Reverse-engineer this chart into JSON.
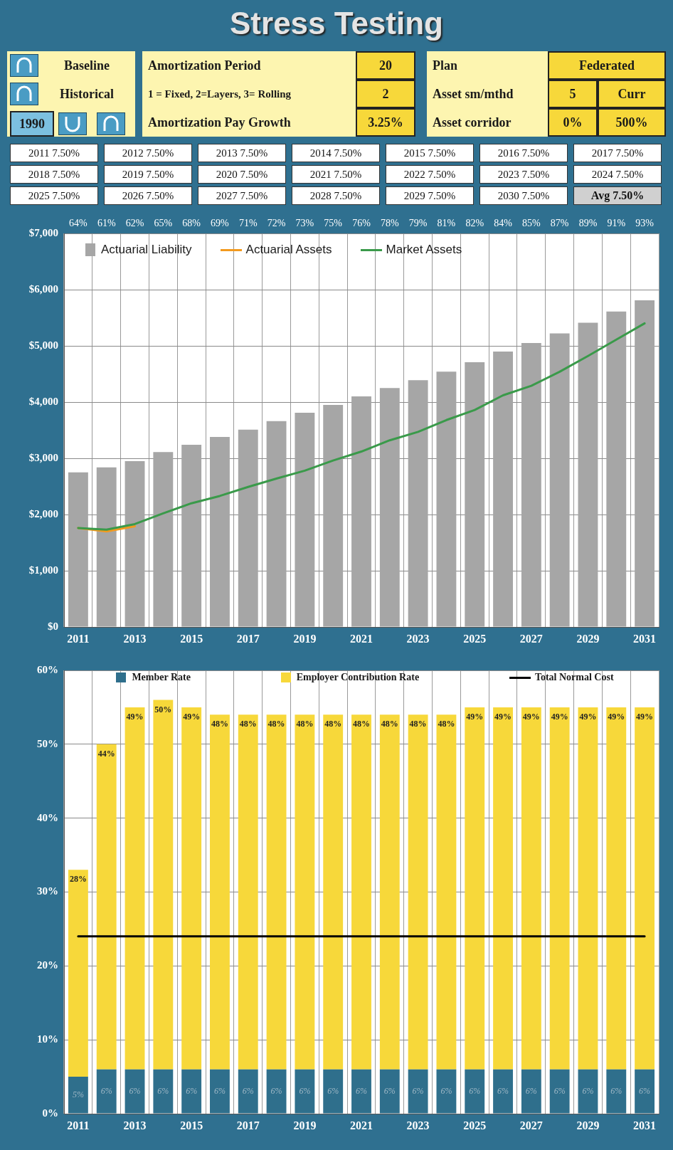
{
  "chart_data": [
    {
      "type": "other",
      "title": "Stress Testing",
      "annotations": [
        "Baseline",
        "Historical",
        "1990",
        "Amortization Period",
        "1 = Fixed, 2=Layers, 3= Rolling",
        "Amortization Pay Growth",
        "20",
        "2",
        "3.25%",
        "Plan",
        "Asset sm/mthd",
        "Asset corridor",
        "Federated",
        "5",
        "Curr",
        "0%",
        "500%"
      ]
    },
    {
      "type": "other",
      "annotations": [
        "2011 7.50%",
        "2012 7.50%",
        "2013 7.50%",
        "2014 7.50%",
        "2015 7.50%",
        "2016 7.50%",
        "2017 7.50%",
        "2018 7.50%",
        "2019 7.50%",
        "2020 7.50%",
        "2021 7.50%",
        "2022 7.50%",
        "2023 7.50%",
        "2024 7.50%",
        "2025 7.50%",
        "2026 7.50%",
        "2027 7.50%",
        "2028 7.50%",
        "2029 7.50%",
        "2030 7.50%",
        "Avg 7.50%"
      ]
    },
    {
      "type": "bar",
      "categories": [
        "2011",
        null,
        "2013",
        null,
        "2015",
        null,
        "2017",
        null,
        "2019",
        null,
        "2021",
        null,
        "2023",
        null,
        "2025",
        null,
        "2027",
        null,
        "2029",
        null,
        "2031"
      ],
      "series": [
        {
          "name": "Actuarial Liability",
          "color": "#a6a6a6",
          "values": [
            2750,
            2840,
            2950,
            3110,
            3240,
            3380,
            3510,
            3660,
            3810,
            3950,
            4100,
            4250,
            4390,
            4540,
            4710,
            4900,
            5050,
            5220,
            5410,
            5610,
            5810
          ]
        },
        {
          "name": "Actuarial Assets",
          "type": "line",
          "color": "#f39a1e",
          "values": [
            1760,
            1700,
            1790,
            null,
            null,
            null,
            null,
            null,
            null,
            null,
            null,
            null,
            null,
            null,
            null,
            null,
            null,
            null,
            null,
            null,
            null
          ]
        },
        {
          "name": "Market Assets",
          "type": "line",
          "color": "#3a9a4a",
          "values": [
            1760,
            1730,
            1830,
            2020,
            2200,
            2330,
            2490,
            2640,
            2780,
            2960,
            3120,
            3320,
            3470,
            3680,
            3860,
            4120,
            4290,
            4540,
            4820,
            5110,
            5400
          ]
        }
      ],
      "ylim": [
        0,
        7000
      ],
      "yticks": [
        {
          "value": 0,
          "label": "$0"
        },
        {
          "value": 1000,
          "label": "$1,000"
        },
        {
          "value": 2000,
          "label": "$2,000"
        },
        {
          "value": 3000,
          "label": "$3,000"
        },
        {
          "value": 4000,
          "label": "$4,000"
        },
        {
          "value": 5000,
          "label": "$5,000"
        },
        {
          "value": 6000,
          "label": "$6,000"
        },
        {
          "value": 7000,
          "label": "$7,000"
        }
      ],
      "grid": true,
      "legend": "top left",
      "marker": "none",
      "annotations": [
        "64%",
        "61%",
        "62%",
        "65%",
        "68%",
        "69%",
        "71%",
        "72%",
        "73%",
        "75%",
        "76%",
        "78%",
        "79%",
        "81%",
        "82%",
        "84%",
        "85%",
        "87%",
        "89%",
        "91%",
        "93%"
      ]
    },
    {
      "type": "bar",
      "stacked": true,
      "categories": [
        "2011",
        null,
        "2013",
        null,
        "2015",
        null,
        "2017",
        null,
        "2019",
        null,
        "2021",
        null,
        "2023",
        null,
        "2025",
        null,
        "2027",
        null,
        "2029",
        null,
        "2031"
      ],
      "series": [
        {
          "name": "Member Rate",
          "color": "#2f6f8c",
          "values": [
            5,
            6,
            6,
            6,
            6,
            6,
            6,
            6,
            6,
            6,
            6,
            6,
            6,
            6,
            6,
            6,
            6,
            6,
            6,
            6,
            6
          ],
          "value_labels": [
            "5%",
            "6%",
            "6%",
            "6%",
            "6%",
            "6%",
            "6%",
            "6%",
            "6%",
            "6%",
            "6%",
            "6%",
            "6%",
            "6%",
            "6%",
            "6%",
            "6%",
            "6%",
            "6%",
            "6%",
            "6%"
          ]
        },
        {
          "name": "Employer Contribution Rate",
          "color": "#f7d83a",
          "values": [
            28,
            44,
            49,
            50,
            49,
            48,
            48,
            48,
            48,
            48,
            48,
            48,
            48,
            48,
            49,
            49,
            49,
            49,
            49,
            49,
            49
          ],
          "value_labels": [
            "28%",
            "44%",
            "49%",
            "50%",
            "49%",
            "48%",
            "48%",
            "48%",
            "48%",
            "48%",
            "48%",
            "48%",
            "48%",
            "48%",
            "49%",
            "49%",
            "49%",
            "49%",
            "49%",
            "49%",
            "49%"
          ]
        },
        {
          "name": "Total Normal Cost",
          "type": "line",
          "color": "#000000",
          "values": [
            24,
            24,
            24,
            24,
            24,
            24,
            24,
            24,
            24,
            24,
            24,
            24,
            24,
            24,
            24,
            24,
            24,
            24,
            24,
            24,
            24
          ]
        }
      ],
      "ylim": [
        0,
        60
      ],
      "yticks": [
        {
          "value": 0,
          "label": "0%"
        },
        {
          "value": 10,
          "label": "10%"
        },
        {
          "value": 20,
          "label": "20%"
        },
        {
          "value": 30,
          "label": "30%"
        },
        {
          "value": 40,
          "label": "40%"
        },
        {
          "value": 50,
          "label": "50%"
        },
        {
          "value": 60,
          "label": "60%"
        }
      ],
      "grid": true,
      "legend": "top",
      "marker": "none"
    }
  ]
}
